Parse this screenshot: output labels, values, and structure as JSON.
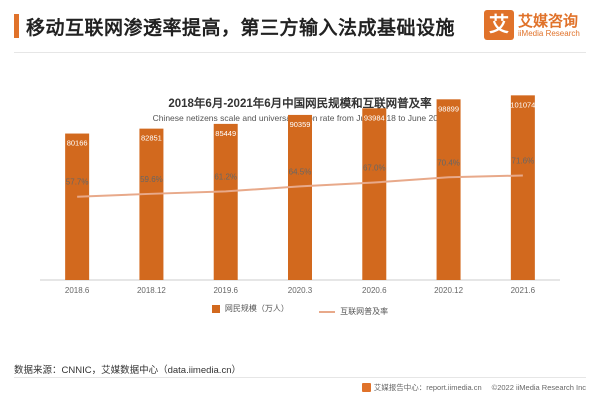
{
  "header": {
    "title": "移动互联网渗透率提高，第三方输入法成基础设施",
    "logo_mark": "艾",
    "logo_cn": "艾媒咨询",
    "logo_en": "iiMedia Research"
  },
  "chart_data": {
    "type": "bar",
    "title": "2018年6月-2021年6月中国网民规模和互联网普及率",
    "subtitle": "Chinese netizens scale and universalization rate from June 2018 to June 2021",
    "categories": [
      "2018.6",
      "2018.12",
      "2019.6",
      "2020.3",
      "2020.6",
      "2020.12",
      "2021.6"
    ],
    "series": [
      {
        "name": "网民规模（万人）",
        "type": "bar",
        "color": "#d2691e",
        "values": [
          80166,
          82851,
          85449,
          90359,
          93984,
          98899,
          101074
        ],
        "labels": [
          "80166",
          "82851",
          "85449",
          "90359",
          "93984",
          "98899",
          "101074"
        ]
      },
      {
        "name": "互联网普及率",
        "type": "line",
        "color": "#e8a98a",
        "values": [
          57.7,
          59.6,
          61.2,
          64.5,
          67.0,
          70.4,
          71.6
        ],
        "labels": [
          "57.7%",
          "59.6%",
          "61.2%",
          "64.5%",
          "67.0%",
          "70.4%",
          "71.6%"
        ]
      }
    ],
    "bar_range": [
      0,
      104000
    ],
    "line_range": [
      0,
      100
    ],
    "grid": false,
    "legend_position": "bottom-center"
  },
  "footer": {
    "source": "数据来源：CNNIC，艾媒数据中心（data.iimedia.cn）",
    "report_center": "艾媒报告中心：report.iimedia.cn",
    "copyright": "©2022 iiMedia Research Inc"
  }
}
